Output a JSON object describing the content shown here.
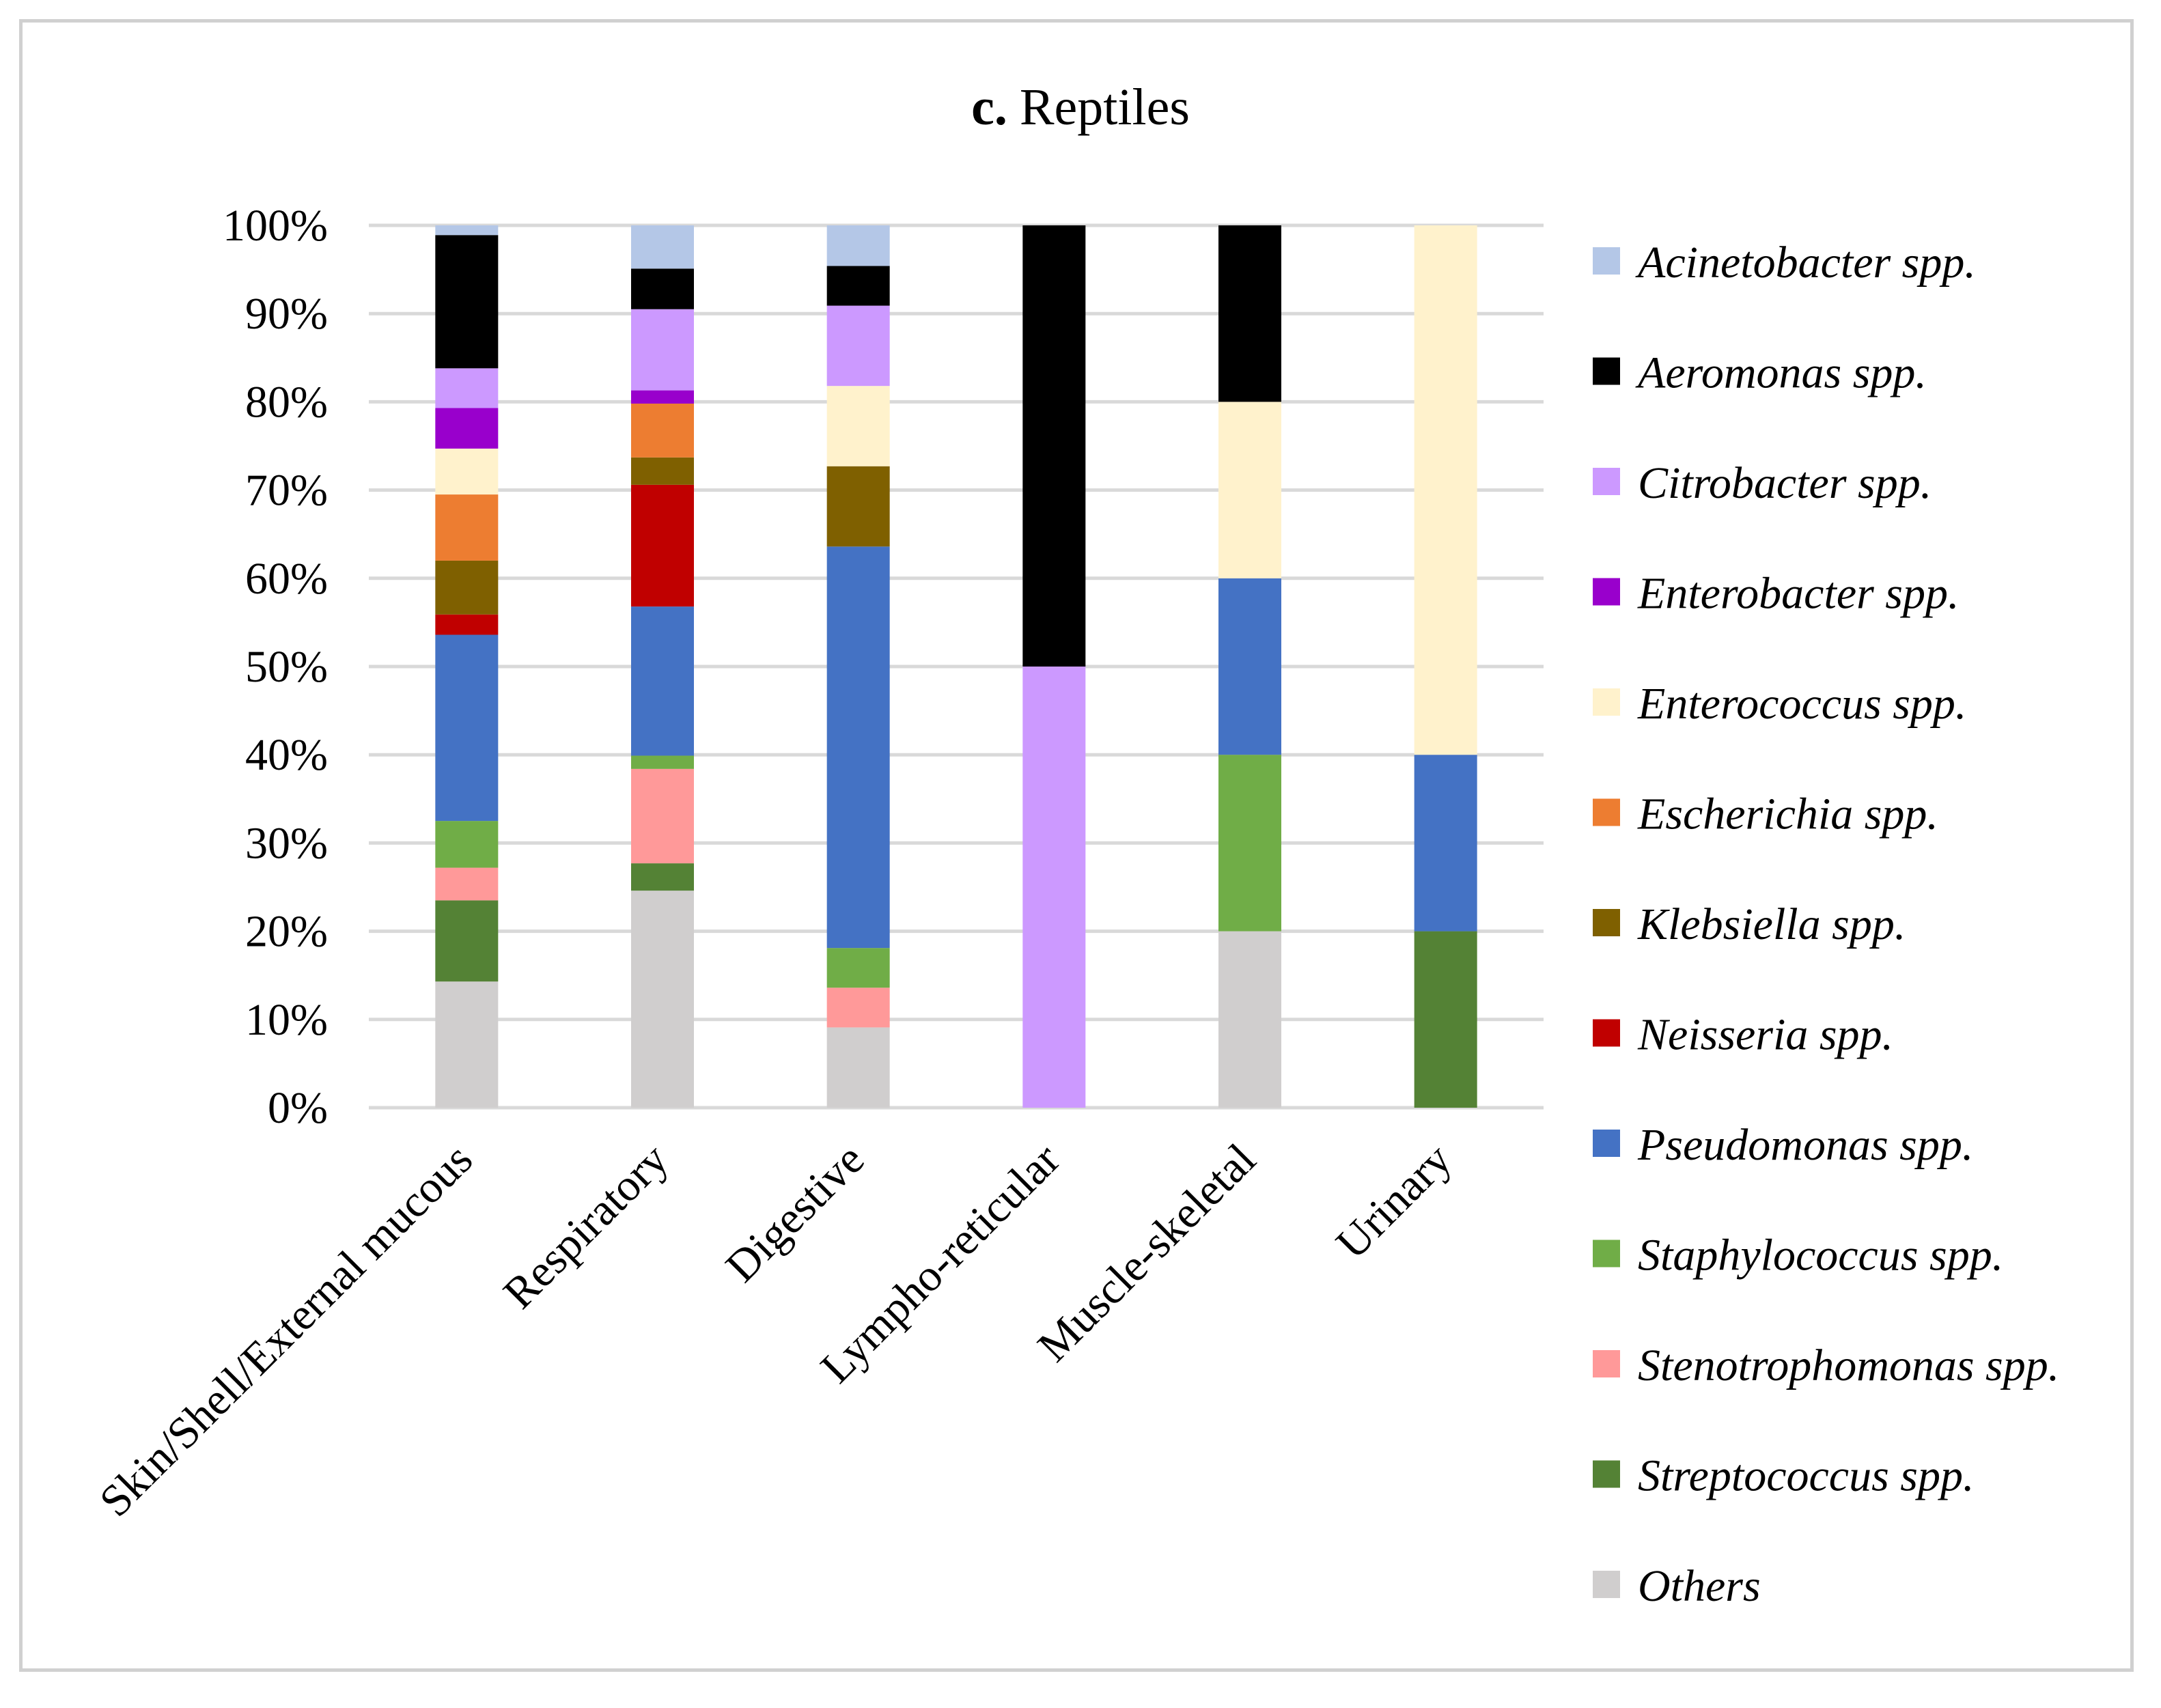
{
  "chart_data": {
    "type": "bar",
    "stacked": true,
    "title_prefix": "c.",
    "title": "Reptiles",
    "ylabel": "",
    "xlabel": "",
    "ylim": [
      0,
      100
    ],
    "yticks": [
      "0%",
      "10%",
      "20%",
      "30%",
      "40%",
      "50%",
      "60%",
      "70%",
      "80%",
      "90%",
      "100%"
    ],
    "grid": true,
    "legend_position": "right",
    "categories": [
      "Skin/Shell/External mucous",
      "Respiratory",
      "Digestive",
      "Lympho-reticular",
      "Muscle-skeletal",
      "Urinary"
    ],
    "series": [
      {
        "name": "Others",
        "color": "#d0cece",
        "values": [
          14.3,
          24.6,
          9.1,
          0,
          20,
          0
        ]
      },
      {
        "name": "Streptococcus spp.",
        "color": "#548235",
        "values": [
          9.2,
          3.1,
          0,
          0,
          0,
          20
        ]
      },
      {
        "name": "Stenotrophomonas spp.",
        "color": "#ff9999",
        "values": [
          3.7,
          10.7,
          4.5,
          0,
          0,
          0
        ]
      },
      {
        "name": "Staphylococcus spp.",
        "color": "#70ad47",
        "values": [
          5.3,
          1.5,
          4.5,
          0,
          20,
          0
        ]
      },
      {
        "name": "Pseudomonas spp.",
        "color": "#4472c4",
        "values": [
          21.1,
          16.9,
          45.5,
          0,
          20,
          20
        ]
      },
      {
        "name": "Neisseria spp.",
        "color": "#c00000",
        "values": [
          2.3,
          13.8,
          0,
          0,
          0,
          0
        ]
      },
      {
        "name": "Klebsiella spp.",
        "color": "#7f6000",
        "values": [
          6.1,
          3.1,
          9.1,
          0,
          0,
          0
        ]
      },
      {
        "name": "Escherichia spp.",
        "color": "#ed7d31",
        "values": [
          7.5,
          6.1,
          0,
          0,
          0,
          0
        ]
      },
      {
        "name": "Enterococcus spp.",
        "color": "#fff2cc",
        "values": [
          5.2,
          0,
          9.1,
          0,
          20,
          60
        ]
      },
      {
        "name": "Enterobacter spp.",
        "color": "#9900cc",
        "values": [
          4.6,
          1.5,
          0,
          0,
          0,
          0
        ]
      },
      {
        "name": "Citrobacter spp.",
        "color": "#cc99ff",
        "values": [
          4.5,
          9.2,
          9.1,
          50,
          0,
          0
        ]
      },
      {
        "name": "Aeromonas spp.",
        "color": "#000000",
        "values": [
          15.1,
          4.6,
          4.5,
          50,
          20,
          0
        ]
      },
      {
        "name": "Acinetobacter spp.",
        "color": "#b4c7e7",
        "values": [
          1.1,
          4.9,
          4.6,
          0,
          0,
          0
        ]
      }
    ],
    "legend_order": [
      "Acinetobacter spp.",
      "Aeromonas spp.",
      "Citrobacter spp.",
      "Enterobacter spp.",
      "Enterococcus spp.",
      "Escherichia spp.",
      "Klebsiella spp.",
      "Neisseria spp.",
      "Pseudomonas spp.",
      "Staphylococcus spp.",
      "Stenotrophomonas spp.",
      "Streptococcus spp.",
      "Others"
    ]
  }
}
